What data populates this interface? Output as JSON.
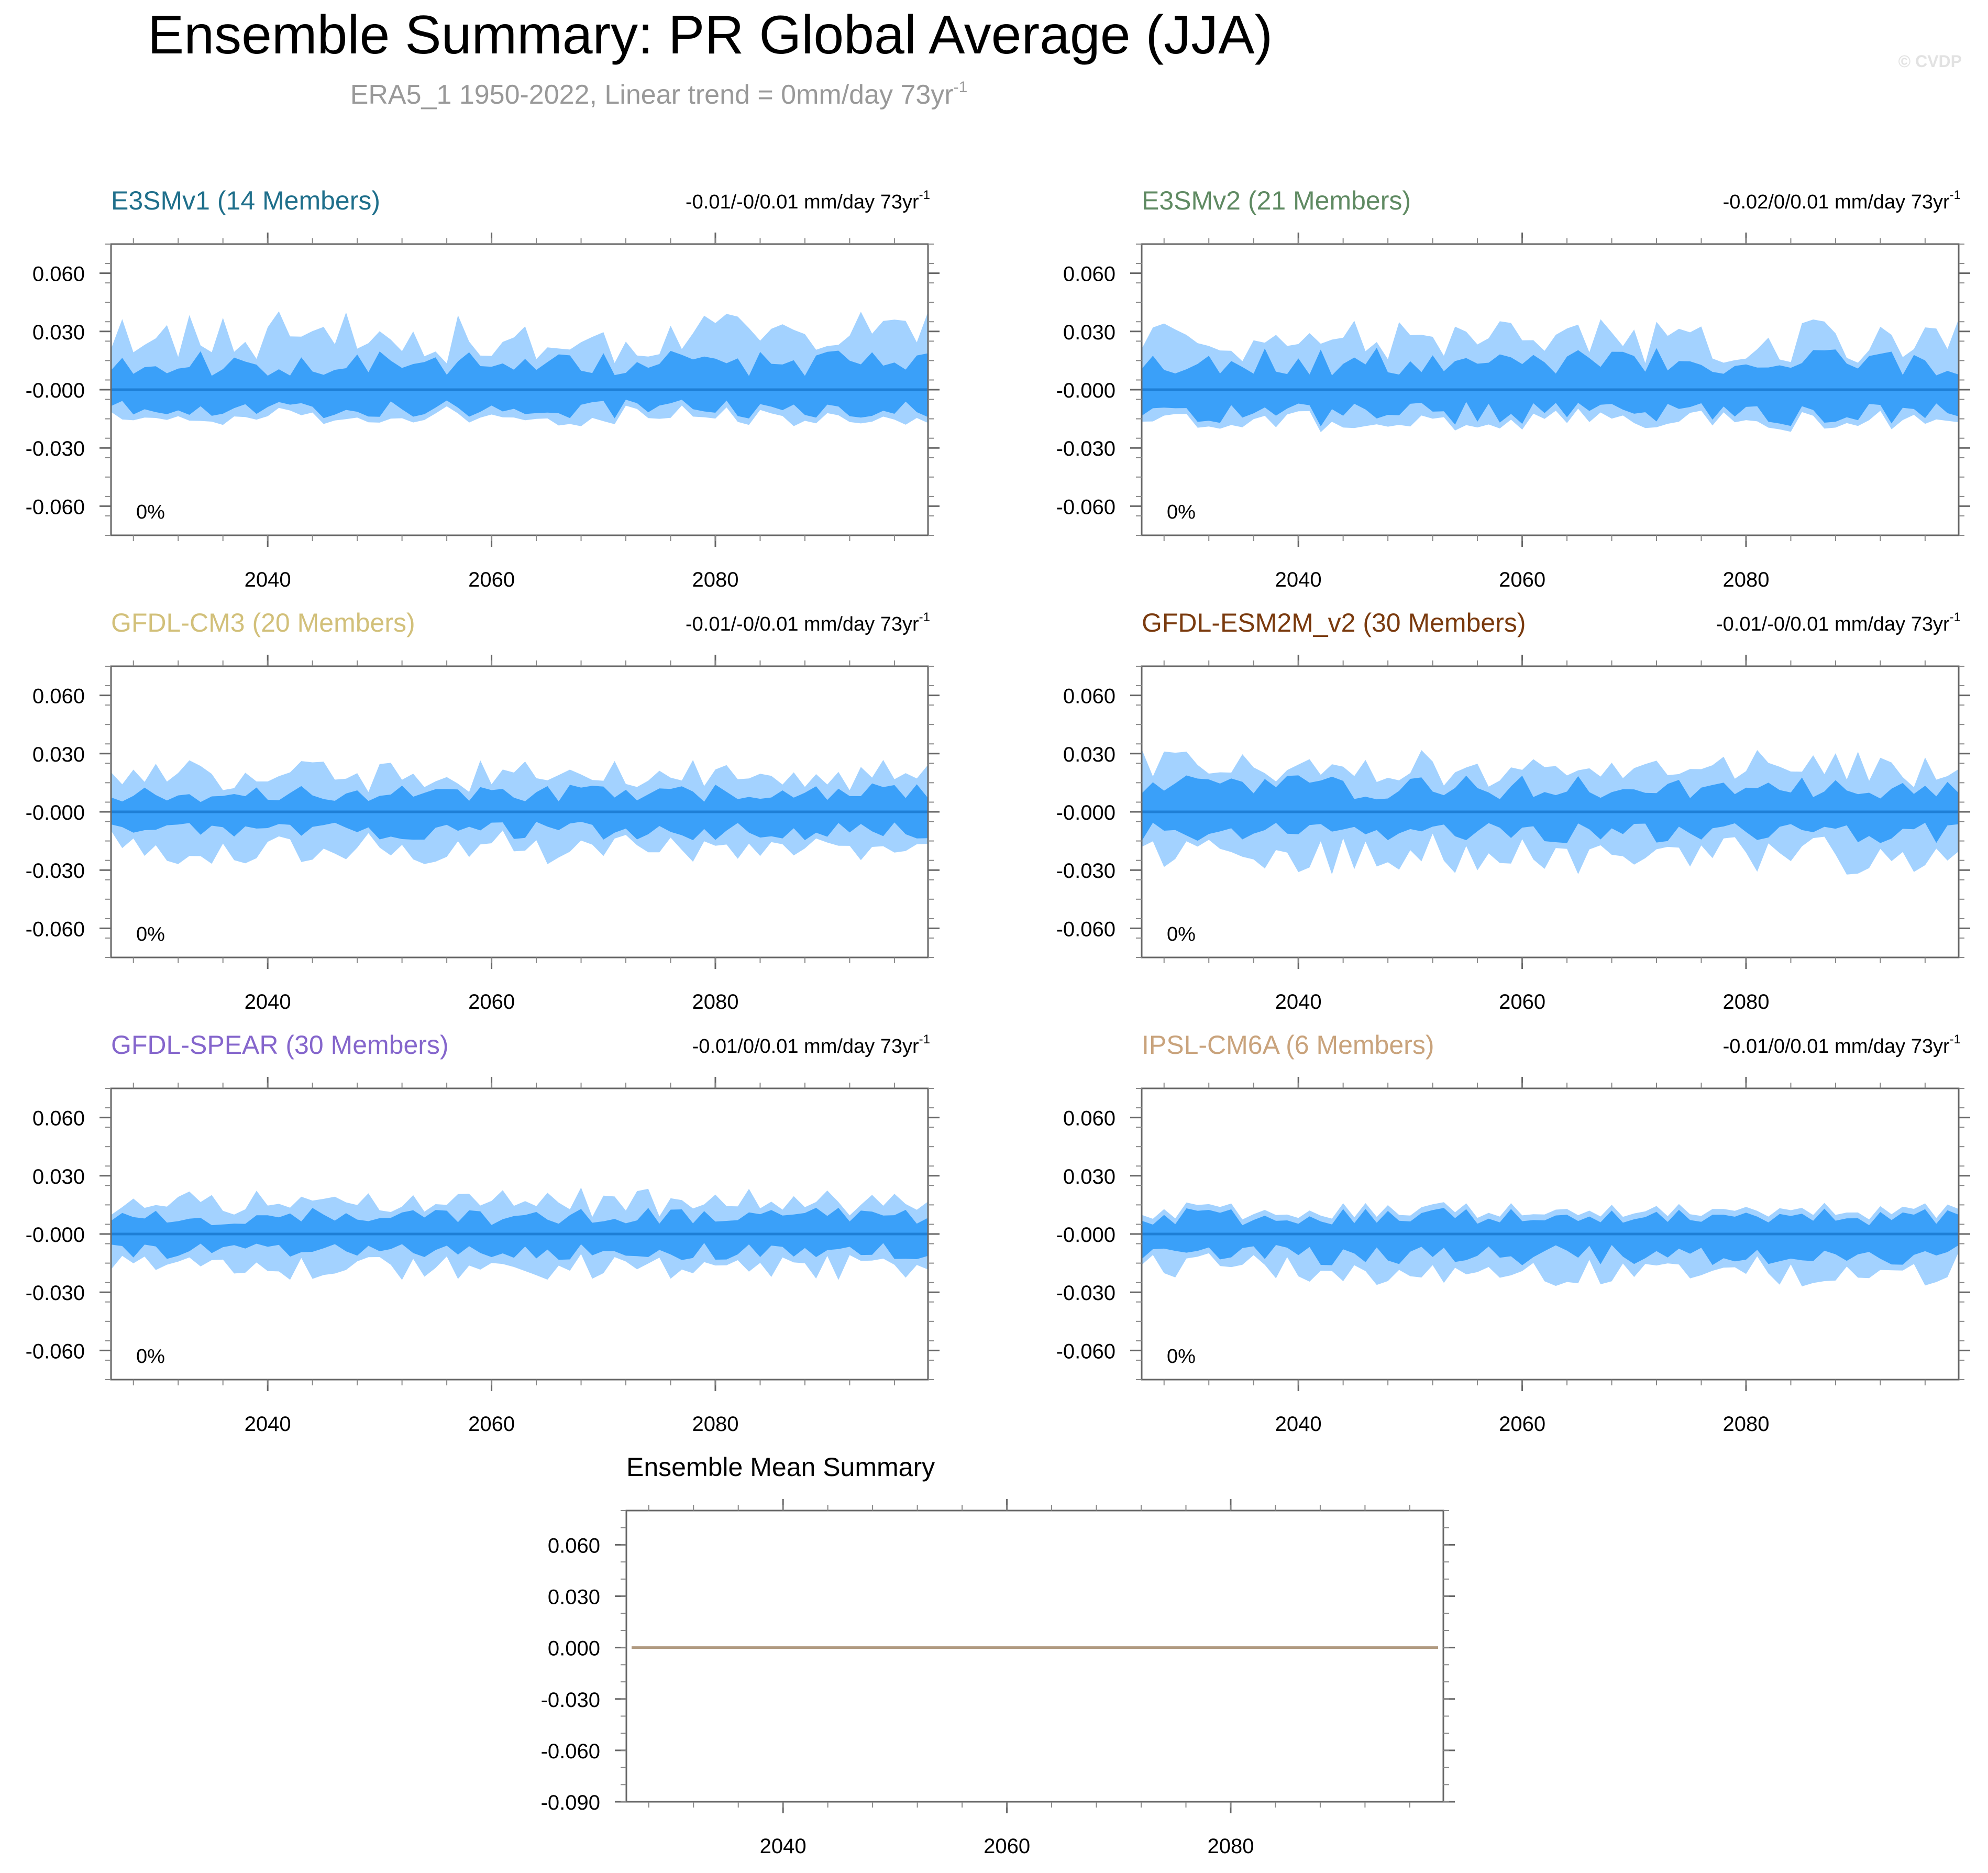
{
  "title": "Ensemble Summary: PR Global Average (JJA)",
  "subtitle_main": "ERA5_1 1950-2022, Linear trend = 0mm/day 73yr",
  "subtitle_sup": "-1",
  "watermark": "© CVDP",
  "colors": {
    "outer_band": "#a3d2ff",
    "inner_band": "#3aa0f9",
    "mean_line": "#1f7fd6",
    "frame": "#666666",
    "ensemble_mean_line": "#b09a80"
  },
  "chart_data": [
    {
      "type": "area",
      "title": "E3SMv1 (14 Members)",
      "title_color": "#1f6f8b",
      "trend_label": "-0.01/-0/0.01 mm/day 73yr",
      "trend_sup": "-1",
      "percent_label": "0%",
      "x_range": [
        2026,
        2099
      ],
      "x_ticks": [
        "2040",
        "2060",
        "2080"
      ],
      "x_tick_values": [
        2040,
        2060,
        2080
      ],
      "ylim": [
        -0.075,
        0.075
      ],
      "y_ticks": [
        "0.060",
        "0.030",
        "-0.000",
        "-0.030",
        "-0.060"
      ],
      "y_tick_values": [
        0.06,
        0.03,
        0.0,
        -0.03,
        -0.06
      ],
      "seed": 11,
      "spread": [
        0.03,
        0.015,
        0.011,
        0.014
      ]
    },
    {
      "type": "area",
      "title": "E3SMv2 (21 Members)",
      "title_color": "#5f8a62",
      "trend_label": "-0.02/0/0.01 mm/day 73yr",
      "trend_sup": "-1",
      "percent_label": "0%",
      "x_range": [
        2026,
        2099
      ],
      "x_ticks": [
        "2040",
        "2060",
        "2080"
      ],
      "x_tick_values": [
        2040,
        2060,
        2080
      ],
      "ylim": [
        -0.075,
        0.075
      ],
      "y_ticks": [
        "0.060",
        "0.030",
        "-0.000",
        "-0.030",
        "-0.060"
      ],
      "y_tick_values": [
        0.06,
        0.03,
        0.0,
        -0.03,
        -0.06
      ],
      "seed": 23,
      "spread": [
        0.027,
        0.016,
        0.014,
        0.015
      ]
    },
    {
      "type": "area",
      "title": "GFDL-CM3 (20 Members)",
      "title_color": "#d2c07a",
      "trend_label": "-0.01/-0/0.01 mm/day 73yr",
      "trend_sup": "-1",
      "percent_label": "0%",
      "x_range": [
        2026,
        2099
      ],
      "x_ticks": [
        "2040",
        "2060",
        "2080"
      ],
      "x_tick_values": [
        2040,
        2060,
        2080
      ],
      "ylim": [
        -0.075,
        0.075
      ],
      "y_ticks": [
        "0.060",
        "0.030",
        "-0.000",
        "-0.030",
        "-0.060"
      ],
      "y_tick_values": [
        0.06,
        0.03,
        0.0,
        -0.03,
        -0.06
      ],
      "seed": 37,
      "spread": [
        0.02,
        0.011,
        0.011,
        0.02
      ]
    },
    {
      "type": "area",
      "title": "GFDL-ESM2M_v2 (30 Members)",
      "title_color": "#7a3a0e",
      "trend_label": "-0.01/-0/0.01 mm/day 73yr",
      "trend_sup": "-1",
      "percent_label": "0%",
      "x_range": [
        2026,
        2099
      ],
      "x_ticks": [
        "2040",
        "2060",
        "2080"
      ],
      "x_tick_values": [
        2040,
        2060,
        2080
      ],
      "ylim": [
        -0.075,
        0.075
      ],
      "y_ticks": [
        "0.060",
        "0.030",
        "-0.000",
        "-0.030",
        "-0.060"
      ],
      "y_tick_values": [
        0.06,
        0.03,
        0.0,
        -0.03,
        -0.06
      ],
      "seed": 41,
      "spread": [
        0.024,
        0.014,
        0.012,
        0.024
      ]
    },
    {
      "type": "area",
      "title": "GFDL-SPEAR (30 Members)",
      "title_color": "#8566cc",
      "trend_label": "-0.01/0/0.01 mm/day 73yr",
      "trend_sup": "-1",
      "percent_label": "0%",
      "x_range": [
        2026,
        2099
      ],
      "x_ticks": [
        "2040",
        "2060",
        "2080"
      ],
      "x_tick_values": [
        2040,
        2060,
        2080
      ],
      "ylim": [
        -0.075,
        0.075
      ],
      "y_ticks": [
        "0.060",
        "0.030",
        "-0.000",
        "-0.030",
        "-0.060"
      ],
      "y_tick_values": [
        0.06,
        0.03,
        0.0,
        -0.03,
        -0.06
      ],
      "seed": 53,
      "spread": [
        0.018,
        0.01,
        0.01,
        0.018
      ]
    },
    {
      "type": "area",
      "title": "IPSL-CM6A (6 Members)",
      "title_color": "#c9a37c",
      "trend_label": "-0.01/0/0.01 mm/day 73yr",
      "trend_sup": "-1",
      "percent_label": "0%",
      "x_range": [
        2026,
        2099
      ],
      "x_ticks": [
        "2040",
        "2060",
        "2080"
      ],
      "x_tick_values": [
        2040,
        2060,
        2080
      ],
      "ylim": [
        -0.075,
        0.075
      ],
      "y_ticks": [
        "0.060",
        "0.030",
        "-0.000",
        "-0.030",
        "-0.060"
      ],
      "y_tick_values": [
        0.06,
        0.03,
        0.0,
        -0.03,
        -0.06
      ],
      "seed": 67,
      "spread": [
        0.006,
        0.01,
        0.012,
        0.02
      ]
    },
    {
      "type": "line",
      "title": "Ensemble Mean Summary",
      "x_range": [
        2026,
        2099
      ],
      "x_ticks": [
        "2040",
        "2060",
        "2080"
      ],
      "x_tick_values": [
        2040,
        2060,
        2080
      ],
      "ylim": [
        -0.09,
        0.08
      ],
      "y_ticks": [
        "0.060",
        "0.030",
        "0.000",
        "-0.030",
        "-0.060",
        "-0.090"
      ],
      "y_tick_values": [
        0.06,
        0.03,
        0.0,
        -0.03,
        -0.06,
        -0.09
      ],
      "series": [
        {
          "name": "ensemble mean",
          "x": [
            2026,
            2099
          ],
          "values": [
            0.0,
            0.0
          ]
        }
      ]
    }
  ]
}
